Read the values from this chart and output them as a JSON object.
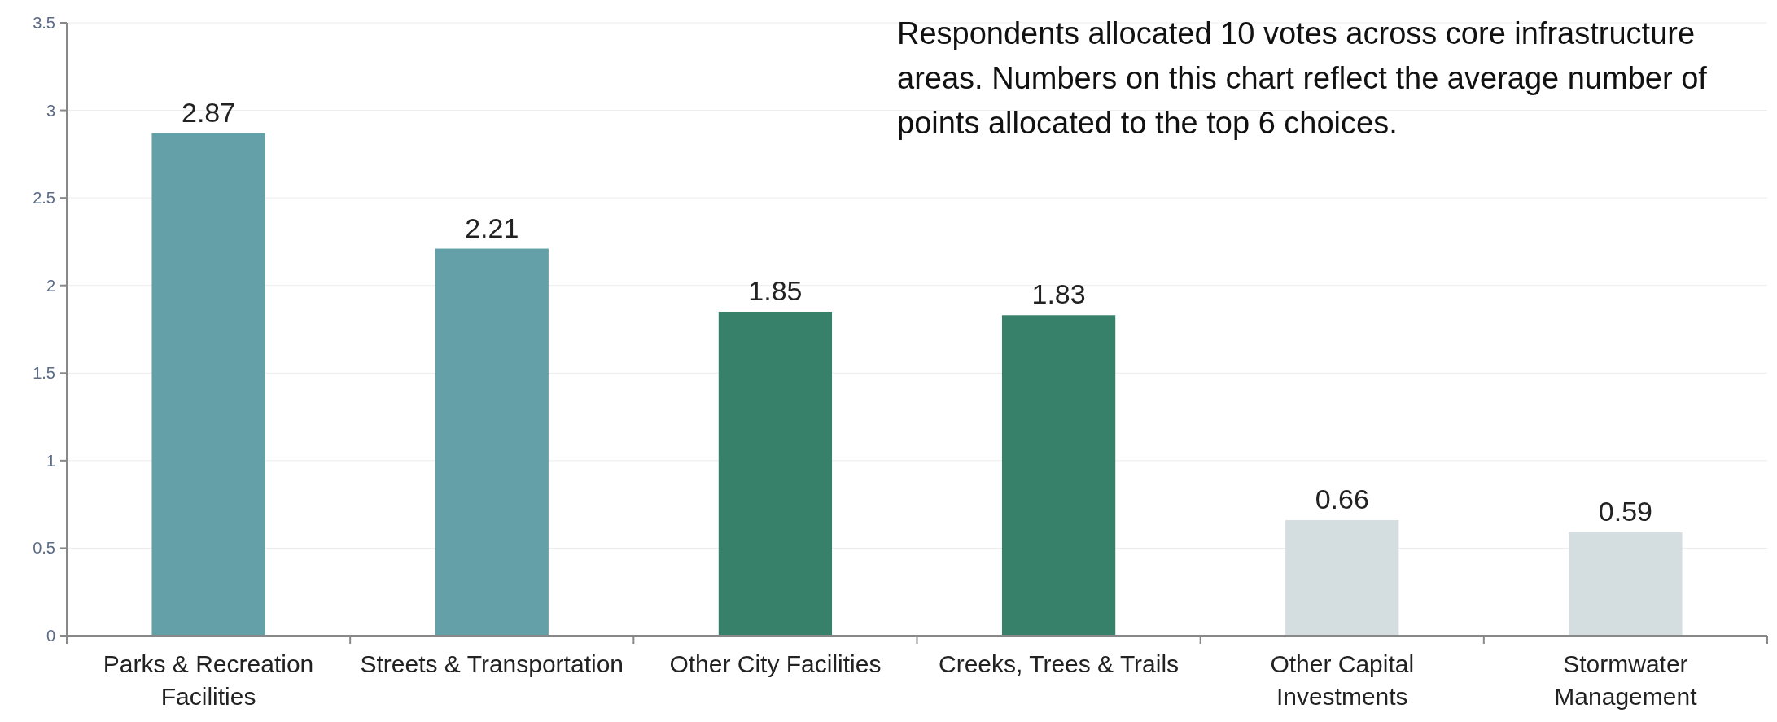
{
  "chart_data": {
    "type": "bar",
    "categories": [
      "Parks & Recreation Facilities",
      "Streets & Transportation",
      "Other City Facilities",
      "Creeks, Trees & Trails",
      "Other Capital Investments",
      "Stormwater Management"
    ],
    "values": [
      2.87,
      2.21,
      1.85,
      1.83,
      0.66,
      0.59
    ],
    "colors": [
      "#64a0a8",
      "#64a0a8",
      "#37806a",
      "#37806a",
      "#d4dee0",
      "#d4dee0"
    ],
    "ylim": [
      0,
      3.5
    ],
    "yticks": [
      0,
      0.5,
      1,
      1.5,
      2,
      2.5,
      3,
      3.5
    ],
    "grid": "y",
    "data_labels": true,
    "annotations": [
      "Respondents allocated 10 votes across core infrastructure areas. Numbers on this chart reflect the average number of points allocated to the top 6 choices."
    ]
  }
}
